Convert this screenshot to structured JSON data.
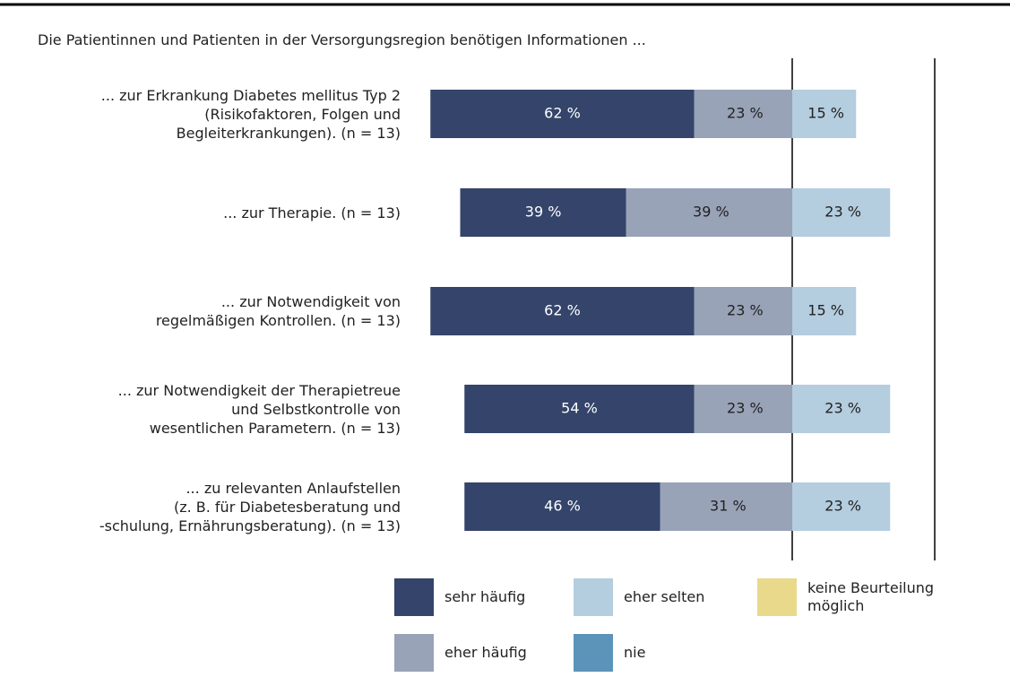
{
  "chart_data": {
    "type": "diverging_bar",
    "title": "Die Patientinnen und Patienten in der Versorgungsregion benötigen Informationen ...",
    "categories": [
      "... zur Erkrankung Diabetes mellitus Typ 2\n(Risikofaktoren, Folgen und\nBegleiterkrankungen). (n = 13)",
      "... zur Therapie. (n = 13)",
      "... zur Notwendigkeit von\nregelmäßigen Kontrollen. (n = 13)",
      "... zur Notwendigkeit der Therapietreue\nund Selbstkontrolle von\nwesentlichen Parametern. (n = 13)",
      "... zu relevanten Anlaufstellen\n(z. B. für Diabetesberatung und\n-schulung, Ernährungsberatung). (n = 13)"
    ],
    "series": [
      {
        "name": "sehr häufig",
        "color": "#34446a",
        "values": [
          62,
          39,
          62,
          54,
          46
        ],
        "value_labels": [
          "62 %",
          "39 %",
          "62 %",
          "54 %",
          "46 %"
        ]
      },
      {
        "name": "eher häufig",
        "color": "#98a3b8",
        "values": [
          23,
          39,
          23,
          23,
          31
        ],
        "value_labels": [
          "23 %",
          "39 %",
          "23 %",
          "23 %",
          "31 %"
        ]
      },
      {
        "name": "eher selten",
        "color": "#b4cddf",
        "values": [
          15,
          23,
          15,
          23,
          23
        ],
        "value_labels": [
          "15 %",
          "23 %",
          "15 %",
          "23 %",
          "23 %"
        ]
      },
      {
        "name": "nie",
        "color": "#5b94b8",
        "values": [
          0,
          0,
          0,
          0,
          0
        ]
      },
      {
        "name": "keine Beurteilung möglich",
        "color": "#e9d98b",
        "values": [
          0,
          0,
          0,
          0,
          0
        ]
      }
    ]
  }
}
